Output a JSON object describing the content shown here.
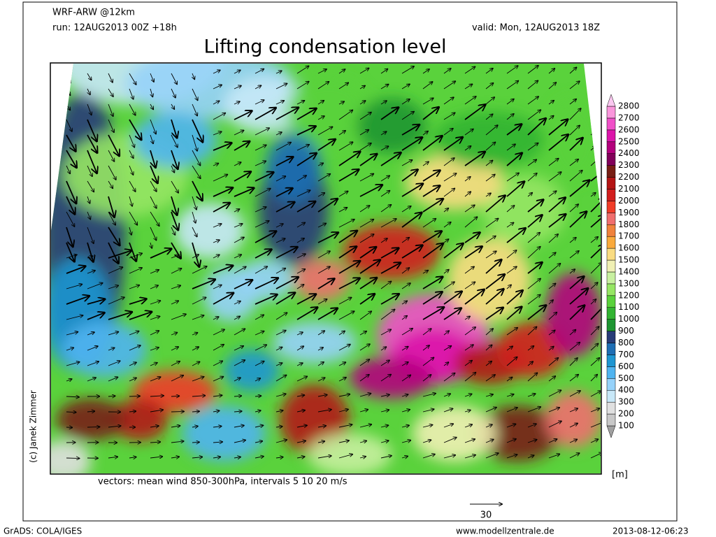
{
  "header": {
    "model": "WRF-ARW @12km",
    "run": "run: 12AUG2013 00Z +18h",
    "valid": "valid: Mon, 12AUG2013 18Z",
    "title": "Lifting condensation level"
  },
  "map": {
    "caption": "vectors: mean wind 850-300hPa, intervals 5 10 20 m/s",
    "copyright": "(c) Janek Zimmer",
    "reference_vector": "30"
  },
  "colorbar": {
    "unit": "[m]",
    "levels": [
      100,
      200,
      300,
      400,
      500,
      600,
      700,
      800,
      900,
      1000,
      1100,
      1200,
      1300,
      1400,
      1500,
      1600,
      1700,
      1800,
      1900,
      2000,
      2100,
      2200,
      2300,
      2400,
      2500,
      2600,
      2700,
      2800
    ],
    "colors": [
      "#a0a0a0",
      "#c8c8c8",
      "#e0e0e0",
      "#c8e8f8",
      "#96d2fa",
      "#50b4f0",
      "#1e96d2",
      "#1e6eb4",
      "#283c78",
      "#1e9632",
      "#32b432",
      "#5ad23c",
      "#96e664",
      "#c8f0a0",
      "#f0f0b4",
      "#fadc82",
      "#faaa3c",
      "#f0823c",
      "#f06e6e",
      "#f03c28",
      "#d21e1e",
      "#b41414",
      "#781e14",
      "#82005a",
      "#b4007d",
      "#dc14aa",
      "#f050c8",
      "#fa96dc",
      "#fac8f0"
    ]
  },
  "footer": {
    "left": "GrADS: COLA/IGES",
    "center": "www.modellzentrale.de",
    "right": "2013-08-12-06:23"
  }
}
